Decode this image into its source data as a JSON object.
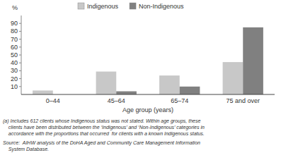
{
  "chart_data": {
    "type": "bar",
    "categories": [
      "0–44",
      "45–64",
      "65–74",
      "75 and over"
    ],
    "series": [
      {
        "name": "Indigenous",
        "color": "#c8c8c8",
        "values": [
          5,
          29,
          24,
          41
        ]
      },
      {
        "name": "Non-Indigenous",
        "color": "#808080",
        "values": [
          0,
          4,
          10,
          85
        ]
      }
    ],
    "ylabel": "%",
    "xlabel": "Age group (years)",
    "ylim": [
      0,
      100
    ],
    "yticks": [
      10,
      20,
      30,
      40,
      50,
      60,
      70,
      80,
      90
    ],
    "grid": false,
    "legend": "top",
    "footnote": "(a) Includes 612 clients whose Indigenous status was not stated. Within age groups, these\n    clients have been distributed between the ‘Indigenous’ and ‘Non-Indigenous’ categories in\n    accordance with the proportions that occurred  for clients with a known Indigenous status.",
    "source": "Source:  AIHW analysis of the DoHA Aged and Community Care Management Information\n    System Database."
  }
}
